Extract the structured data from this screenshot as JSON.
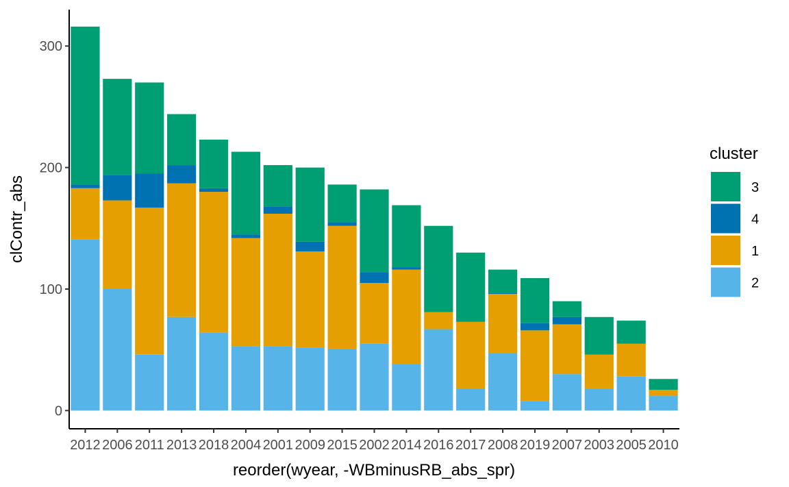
{
  "chart_data": {
    "type": "bar",
    "stacked": true,
    "xlabel": "reorder(wyear, -WBminusRB_abs_spr)",
    "ylabel": "clContr_abs",
    "ylim": [
      -15,
      330
    ],
    "yticks": [
      0,
      100,
      200,
      300
    ],
    "grid": false,
    "legend": {
      "title": "cluster",
      "position": "right",
      "order": [
        "3",
        "4",
        "1",
        "2"
      ]
    },
    "categories": [
      "2012",
      "2006",
      "2011",
      "2013",
      "2018",
      "2004",
      "2001",
      "2009",
      "2015",
      "2002",
      "2014",
      "2016",
      "2017",
      "2008",
      "2019",
      "2007",
      "2003",
      "2005",
      "2010"
    ],
    "series": [
      {
        "name": "2",
        "color": "#56B4E9",
        "values": [
          141,
          100,
          46,
          77,
          64,
          53,
          53,
          52,
          51,
          55,
          38,
          67,
          18,
          47,
          8,
          30,
          18,
          28,
          12
        ]
      },
      {
        "name": "1",
        "color": "#E69F00",
        "values": [
          42,
          73,
          121,
          110,
          116,
          89,
          109,
          79,
          101,
          50,
          78,
          14,
          55,
          49,
          58,
          41,
          28,
          27,
          5
        ]
      },
      {
        "name": "4",
        "color": "#0072B2",
        "values": [
          3,
          21,
          28,
          15,
          3,
          3,
          6,
          8,
          3,
          9,
          2,
          0,
          0,
          1,
          6,
          6,
          0,
          0,
          0
        ]
      },
      {
        "name": "3",
        "color": "#009E73",
        "values": [
          130,
          79,
          75,
          42,
          40,
          68,
          34,
          61,
          31,
          68,
          51,
          71,
          57,
          19,
          37,
          13,
          31,
          19,
          9
        ]
      }
    ]
  }
}
